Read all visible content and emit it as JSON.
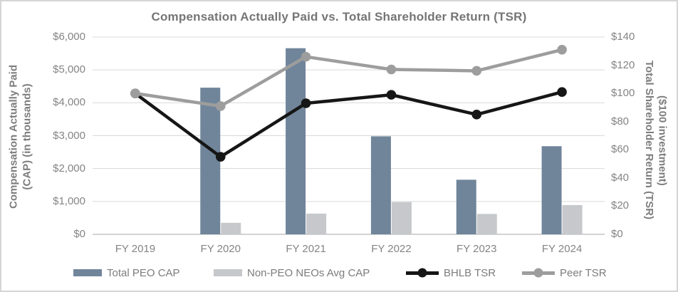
{
  "chart_data": {
    "type": "combo-bar-line",
    "title": "Compensation Actually Paid vs. Total Shareholder Return (TSR)",
    "categories": [
      "FY 2019",
      "FY 2020",
      "FY 2021",
      "FY 2022",
      "FY 2023",
      "FY 2024"
    ],
    "bar_series": [
      {
        "name": "Total PEO CAP",
        "color": "#70859a",
        "axis": "left",
        "values": [
          null,
          4460,
          5660,
          2980,
          1660,
          2680
        ]
      },
      {
        "name": "Non-PEO NEOs Avg CAP",
        "color": "#c6c8cb",
        "axis": "left",
        "values": [
          null,
          350,
          630,
          980,
          620,
          890
        ]
      }
    ],
    "line_series": [
      {
        "name": "BHLB TSR",
        "color": "#161616",
        "axis": "right",
        "values": [
          100,
          55,
          93,
          99,
          85,
          101
        ]
      },
      {
        "name": "Peer TSR",
        "color": "#9d9d9d",
        "axis": "right",
        "values": [
          100,
          91,
          126,
          117,
          116,
          131
        ]
      }
    ],
    "left_axis": {
      "title_line1": "Compensation Actually Paid",
      "title_line2": "(CAP) (in thousands)",
      "min": 0,
      "max": 6000,
      "step": 1000,
      "tick_values": [
        0,
        1000,
        2000,
        3000,
        4000,
        5000,
        6000
      ],
      "tick_labels": [
        "$0",
        "$1,000",
        "$2,000",
        "$3,000",
        "$4,000",
        "$5,000",
        "$6,000"
      ]
    },
    "right_axis": {
      "title_line1": "Total Shareholder Return (TSR)",
      "title_line2": "($100 investment)",
      "min": 0,
      "max": 140,
      "step": 20,
      "tick_values": [
        0,
        20,
        40,
        60,
        80,
        100,
        120,
        140
      ],
      "tick_labels": [
        "$0",
        "$20",
        "$40",
        "$60",
        "$80",
        "$100",
        "$120",
        "$140"
      ]
    },
    "layout": {
      "grid": "horizontal",
      "legend_position": "bottom",
      "gridline_color": "#d9d9d9",
      "axisline_color": "#c3c3c3",
      "text_color": "#848484"
    }
  }
}
